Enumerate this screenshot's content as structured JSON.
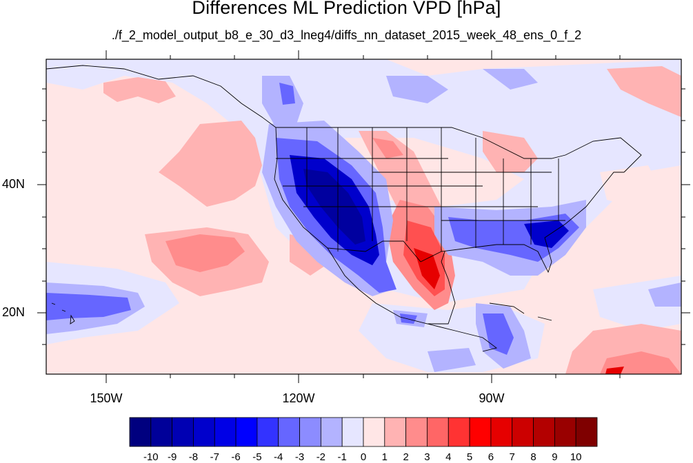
{
  "title": "Differences ML Prediction VPD [hPa]",
  "subtitle": "./f_2_model_output_b8_e_30_d3_lneg4/diffs_nn_dataset_2015_week_48_ens_0_f_2",
  "lon_labels": [
    "150W",
    "120W",
    "90W"
  ],
  "lat_labels": [
    "40N",
    "20N"
  ],
  "colorbar": {
    "labels": [
      "-10",
      "-9",
      "-8",
      "-7",
      "-6",
      "-5",
      "-4",
      "-3",
      "-2",
      "-1",
      "0",
      "1",
      "2",
      "3",
      "4",
      "5",
      "6",
      "7",
      "8",
      "9",
      "10"
    ],
    "colors": [
      "#00007f",
      "#000099",
      "#0000b3",
      "#0000cc",
      "#0000e6",
      "#0000ff",
      "#3333ff",
      "#6666ff",
      "#8c8cff",
      "#b3b3ff",
      "#e6e6ff",
      "#ffe6e6",
      "#ffb3b3",
      "#ff8c8c",
      "#ff6666",
      "#ff3333",
      "#ff0000",
      "#e60000",
      "#cc0000",
      "#b30000",
      "#990000",
      "#7f0000"
    ]
  },
  "map": {
    "extent": {
      "lon": [
        -160,
        -60
      ],
      "lat": [
        10,
        59
      ]
    },
    "background": "#ffe6e6"
  }
}
